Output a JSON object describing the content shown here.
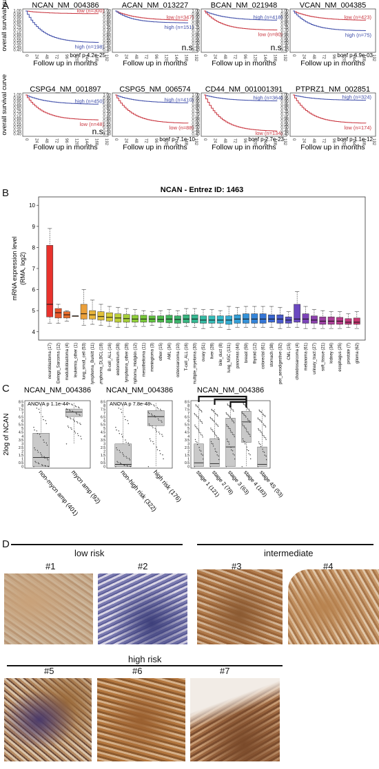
{
  "panels": {
    "a": "A",
    "b": "B",
    "c": "C",
    "d": "D"
  },
  "survival": {
    "ylabel": "overall survival curve",
    "xlabel": "Follow up in months",
    "yticks": [
      "1.00",
      "0.95",
      "0.90",
      "0.85",
      "0.80",
      "0.75",
      "0.70",
      "0.65",
      "0.60",
      "0.55",
      "0.50",
      "0.45",
      "0.40"
    ],
    "xticks": [
      "0",
      "24",
      "48",
      "72",
      "96",
      "120",
      "144",
      "168",
      "192"
    ],
    "plots": [
      {
        "title": "NCAN_NM_004386",
        "top_label": "low (n=300)",
        "top_color": "#c8323c",
        "bottom_label": "high (n=198)",
        "bottom_color": "#3c4ba8",
        "stat": "bonf p 4.2e-25",
        "top_end": 0.96,
        "bottom_end": 0.52
      },
      {
        "title": "ACAN_NM_013227",
        "top_label": "low (n=347)",
        "top_color": "#c8323c",
        "bottom_label": "high (n=151)",
        "bottom_color": "#3c4ba8",
        "stat": "n.s.",
        "top_end": 0.86,
        "bottom_end": 0.82
      },
      {
        "title": "BCAN_NM_021948",
        "top_label": "high (n=418)",
        "top_color": "#3c4ba8",
        "bottom_label": "low (n=80)",
        "bottom_color": "#c8323c",
        "stat": "n.s.",
        "top_end": 0.86,
        "bottom_end": 0.71
      },
      {
        "title": "VCAN_NM_004385",
        "top_label": "low (n=423)",
        "top_color": "#c8323c",
        "bottom_label": "high (n=75)",
        "bottom_color": "#3c4ba8",
        "stat": "bonf p 6.9e-03",
        "top_end": 0.86,
        "bottom_end": 0.7
      },
      {
        "title": "CSPG4_NM_001897",
        "top_label": "high (n=450)",
        "top_color": "#3c4ba8",
        "bottom_label": "low (n=48)",
        "bottom_color": "#c8323c",
        "stat": "n.s.",
        "top_end": 0.86,
        "bottom_end": 0.62
      },
      {
        "title": "CSPG5_NM_006574",
        "top_label": "high (n=410)",
        "top_color": "#3c4ba8",
        "bottom_label": "low (n=88)",
        "bottom_color": "#c8323c",
        "stat": "bonf p 7.1e-10",
        "top_end": 0.88,
        "bottom_end": 0.57
      },
      {
        "title": "CD44_NM_001001391",
        "top_label": "high (n=364)",
        "top_color": "#3c4ba8",
        "bottom_label": "low (n=134)",
        "bottom_color": "#c8323c",
        "stat": "bonf p 2.7e-23",
        "top_end": 0.91,
        "bottom_end": 0.45
      },
      {
        "title": "PTPRZ1_NM_002851",
        "top_label": "high (n=324)",
        "top_color": "#3c4ba8",
        "bottom_label": "low (n=174)",
        "bottom_color": "#c8323c",
        "stat": "bonf p 1.1e-12",
        "top_end": 0.92,
        "bottom_end": 0.57
      }
    ]
  },
  "chart_data": [
    {
      "type": "box",
      "title": "NCAN  -  Entrez ID: 1463",
      "ylabel": "mRNA expression level (RMA, log2)",
      "ylim": [
        3.6,
        10.4
      ],
      "yticks": [
        4,
        5,
        6,
        7,
        8,
        9,
        10
      ],
      "categories": [
        "neuroblastoma (17)",
        "Ewings_Sarcoma (12)",
        "medulloblastoma (4)",
        "leukemia_other (1)",
        "lung_small_cell (53)",
        "lymphoma_Burkitt (11)",
        "lymphoma_DLBCL (18)",
        "B-cell_ALL (16)",
        "endometrium (28)",
        "lymphoma_other (28)",
        "lymphoma_Hodgkin (12)",
        "mesothelioma (11)",
        "meningioma (3)",
        "other (15)",
        "AML (34)",
        "osteosarcoma (10)",
        "T-cell_ALL (16)",
        "multiple_myeloma (30)",
        "ovary (51)",
        "liver (28)",
        "bile_duct (8)",
        "lung_NSC (131)",
        "pancreas (44)",
        "breast (59)",
        "thyroid (12)",
        "colorectal (61)",
        "stomach (38)",
        "upper_aerodigestive (32)",
        "CML (15)",
        "chondrosarcoma (4)",
        "melanoma (61)",
        "urinary_tract (27)",
        "soft_tissue (21)",
        "kidney (34)",
        "esophagus (25)",
        "prostate (7)",
        "glioma (62)"
      ],
      "medians": [
        5.3,
        4.9,
        4.8,
        4.75,
        4.85,
        4.8,
        4.72,
        4.68,
        4.65,
        4.62,
        4.6,
        4.6,
        4.6,
        4.58,
        4.6,
        4.58,
        4.6,
        4.6,
        4.55,
        4.55,
        4.55,
        4.55,
        4.6,
        4.6,
        4.6,
        4.6,
        4.6,
        4.6,
        4.55,
        4.6,
        4.6,
        4.55,
        4.5,
        4.5,
        4.5,
        4.45,
        4.45
      ],
      "q1": [
        4.7,
        4.65,
        4.65,
        4.75,
        4.6,
        4.6,
        4.55,
        4.5,
        4.45,
        4.45,
        4.45,
        4.45,
        4.45,
        4.45,
        4.42,
        4.4,
        4.42,
        4.42,
        4.4,
        4.4,
        4.4,
        4.35,
        4.4,
        4.4,
        4.4,
        4.4,
        4.45,
        4.4,
        4.4,
        4.45,
        4.4,
        4.4,
        4.35,
        4.35,
        4.35,
        4.35,
        4.35
      ],
      "q3": [
        8.1,
        5.1,
        4.95,
        4.75,
        5.3,
        5.0,
        4.95,
        4.9,
        4.85,
        4.82,
        4.78,
        4.78,
        4.75,
        4.75,
        4.78,
        4.75,
        4.8,
        4.8,
        4.75,
        4.75,
        4.75,
        4.75,
        4.8,
        4.85,
        4.85,
        4.85,
        4.8,
        4.8,
        4.7,
        5.3,
        4.85,
        4.75,
        4.7,
        4.7,
        4.68,
        4.62,
        4.65
      ],
      "low": [
        4.4,
        4.4,
        4.5,
        4.75,
        4.3,
        4.35,
        4.3,
        4.25,
        4.2,
        4.2,
        4.25,
        4.25,
        4.3,
        4.2,
        4.2,
        4.2,
        4.25,
        4.2,
        4.15,
        4.2,
        4.2,
        4.1,
        4.2,
        4.2,
        4.2,
        4.2,
        4.2,
        4.15,
        4.2,
        4.2,
        4.15,
        4.15,
        4.15,
        4.15,
        4.15,
        4.2,
        4.15
      ],
      "high": [
        8.9,
        5.3,
        5.0,
        4.75,
        6.0,
        5.5,
        5.3,
        5.2,
        5.15,
        5.1,
        5.05,
        5.0,
        4.95,
        5.0,
        5.05,
        5.0,
        5.1,
        5.1,
        5.05,
        5.05,
        5.0,
        5.2,
        5.15,
        5.2,
        5.2,
        5.2,
        5.2,
        5.15,
        4.95,
        5.9,
        5.2,
        5.05,
        5.0,
        4.95,
        4.95,
        4.85,
        4.95
      ],
      "box_colors": [
        "#e8322d",
        "#e8572d",
        "#e86e2d",
        "#e8852d",
        "#eba03a",
        "#e8b43a",
        "#e0c03a",
        "#d4cc3a",
        "#bdcf3a",
        "#a6cf3a",
        "#8fcf3a",
        "#78c83a",
        "#62c240",
        "#4fbd4c",
        "#42b85c",
        "#3db56e",
        "#39b580",
        "#36b892",
        "#35bba4",
        "#35bdb8",
        "#35b8c8",
        "#35aed4",
        "#35a0d8",
        "#3592d8",
        "#3584d8",
        "#3576d6",
        "#3a68d2",
        "#4a5ccc",
        "#5a52c6",
        "#6a48c0",
        "#7c44b8",
        "#8c42ae",
        "#9c40a2",
        "#aa3e96",
        "#b83c8a",
        "#c23a7e",
        "#c83872"
      ]
    },
    {
      "type": "box",
      "title": "NCAN_NM_004386",
      "annotation": "ANOVA  p 1.1e-44",
      "ylabel": "2log of NCAN",
      "yticks": [
        0,
        0.5,
        1,
        1.5,
        2,
        2.5,
        3,
        3.5,
        4,
        4.5,
        5,
        5.5,
        6,
        6.5,
        7,
        7.5,
        8,
        8.5
      ],
      "ylim": [
        -0.2,
        8.7
      ],
      "categories": [
        "non-mycn amp (401)",
        "mycn amp (92)"
      ],
      "medians": [
        1.2,
        7.2
      ],
      "q1": [
        0.0,
        6.6
      ],
      "q3": [
        4.4,
        7.6
      ],
      "low": [
        0.0,
        3.0
      ],
      "high": [
        8.3,
        8.4
      ]
    },
    {
      "type": "box",
      "title": "NCAN_NM_004386",
      "annotation": "ANOVA  p 7.8e-48",
      "yticks": [
        0,
        0.5,
        1,
        1.5,
        2,
        2.5,
        3,
        3.5,
        4,
        4.5,
        5,
        5.5,
        6,
        6.5,
        7,
        7.5,
        8,
        8.5
      ],
      "ylim": [
        -0.2,
        8.7
      ],
      "categories": [
        "non-high risk (322)",
        "high risk (176)"
      ],
      "medians": [
        0.3,
        6.6
      ],
      "q1": [
        0.0,
        5.4
      ],
      "q3": [
        3.0,
        7.4
      ],
      "low": [
        0.0,
        0.0
      ],
      "high": [
        8.3,
        8.4
      ]
    },
    {
      "type": "box",
      "title": "NCAN_NM_004386",
      "yticks": [
        0,
        0.5,
        1,
        1.5,
        2,
        2.5,
        3,
        3.5,
        4,
        4.5,
        5,
        5.5,
        6,
        6.5,
        7,
        7.5,
        8,
        8.5
      ],
      "ylim": [
        -0.2,
        8.7
      ],
      "categories": [
        "stage 1 (121)",
        "stage 2 (78)",
        "stage 3 (63)",
        "stage 4 (183)",
        "stage 4S (53)"
      ],
      "medians": [
        0.5,
        0.4,
        2.6,
        5.9,
        0.3
      ],
      "q1": [
        0.0,
        0.0,
        0.0,
        3.2,
        0.0
      ],
      "q3": [
        3.0,
        3.7,
        6.4,
        7.3,
        2.6
      ],
      "low": [
        0.0,
        0.0,
        0.0,
        0.0,
        0.0
      ],
      "high": [
        8.2,
        7.6,
        8.3,
        8.4,
        7.5
      ]
    }
  ],
  "panelD": {
    "low_risk": "low risk",
    "intermediate": "intermediate",
    "high_risk": "high risk",
    "samples": [
      "#1",
      "#2",
      "#3",
      "#4",
      "#5",
      "#6",
      "#7"
    ]
  }
}
